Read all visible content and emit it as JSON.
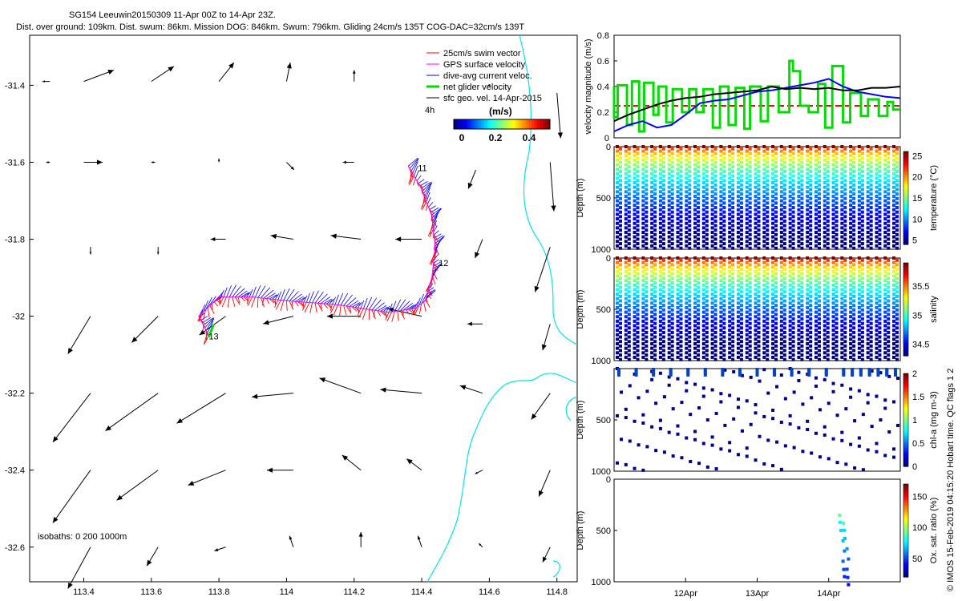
{
  "header": {
    "title_line1": "SG154 Leeuwin20150309 11-Apr 00Z to 14-Apr 23Z.",
    "title_line2": "Dist. over ground: 109km. Dist. swum: 86km. Mission DOG: 846km. Swum: 796km. Gliding 24cm/s 135T COG-DAC=32cm/s 139T"
  },
  "map": {
    "x_ticks": [
      "113.4",
      "113.6",
      "113.8",
      "114",
      "114.2",
      "114.4",
      "114.6",
      "114.8"
    ],
    "y_ticks": [
      "-31.4",
      "-31.6",
      "-31.8",
      "-32",
      "-32.2",
      "-32.4",
      "-32.6"
    ],
    "xlim": [
      113.24,
      114.86
    ],
    "ylim": [
      -32.69,
      -31.27
    ],
    "legend": [
      {
        "label": "25cm/s swim vector",
        "color": "#ff0000"
      },
      {
        "label": "GPS surface velocity",
        "color": "#ff00ff"
      },
      {
        "label": "dive-avg current veloc.",
        "color": "#0000ff"
      },
      {
        "label": "net glider velocity",
        "color": "#00dd00"
      },
      {
        "label": "sfc geo. vel. 14-Apr-2015",
        "color": "#000000"
      }
    ],
    "scale_label": "4h",
    "colorbar_title": "(m/s)",
    "colorbar_ticks": [
      "0",
      "0.2",
      "0.4"
    ],
    "isobaths_label": "isobaths: 0   200   1000m",
    "track_labels": [
      "11",
      "12",
      "13"
    ],
    "track": [
      [
        114.36,
        -31.61
      ],
      [
        114.4,
        -31.67
      ],
      [
        114.43,
        -31.74
      ],
      [
        114.44,
        -31.82
      ],
      [
        114.43,
        -31.9
      ],
      [
        114.41,
        -31.96
      ],
      [
        114.38,
        -31.98
      ],
      [
        114.3,
        -31.99
      ],
      [
        114.15,
        -31.97
      ],
      [
        114.0,
        -31.96
      ],
      [
        113.9,
        -31.95
      ],
      [
        113.8,
        -31.95
      ],
      [
        113.74,
        -32.0
      ],
      [
        113.77,
        -32.05
      ]
    ],
    "geo_vectors": [
      {
        "lon": 113.3,
        "lat": -31.39,
        "u": -0.02,
        "v": 0.0
      },
      {
        "lon": 113.4,
        "lat": -31.39,
        "u": 0.08,
        "v": 0.03
      },
      {
        "lon": 113.6,
        "lat": -31.39,
        "u": 0.06,
        "v": 0.04
      },
      {
        "lon": 113.8,
        "lat": -31.39,
        "u": 0.04,
        "v": 0.05
      },
      {
        "lon": 114.0,
        "lat": -31.39,
        "u": 0.01,
        "v": 0.05
      },
      {
        "lon": 114.2,
        "lat": -31.39,
        "u": 0.0,
        "v": 0.03
      },
      {
        "lon": 114.6,
        "lat": -31.4,
        "u": 0.0,
        "v": 0.0
      },
      {
        "lon": 114.8,
        "lat": -31.42,
        "u": 0.01,
        "v": -0.12
      },
      {
        "lon": 113.3,
        "lat": -31.6,
        "u": -0.01,
        "v": 0.0
      },
      {
        "lon": 113.4,
        "lat": -31.6,
        "u": 0.05,
        "v": 0.0
      },
      {
        "lon": 113.6,
        "lat": -31.6,
        "u": 0.01,
        "v": 0.0
      },
      {
        "lon": 113.8,
        "lat": -31.6,
        "u": 0.0,
        "v": 0.01
      },
      {
        "lon": 114.0,
        "lat": -31.6,
        "u": 0.02,
        "v": -0.02
      },
      {
        "lon": 114.2,
        "lat": -31.6,
        "u": -0.03,
        "v": 0.0
      },
      {
        "lon": 114.56,
        "lat": -31.62,
        "u": -0.02,
        "v": -0.05
      },
      {
        "lon": 114.78,
        "lat": -31.6,
        "u": 0.01,
        "v": -0.13
      },
      {
        "lon": 113.42,
        "lat": -31.82,
        "u": 0.0,
        "v": -0.02
      },
      {
        "lon": 113.62,
        "lat": -31.82,
        "u": 0.0,
        "v": -0.02
      },
      {
        "lon": 113.82,
        "lat": -31.8,
        "u": -0.04,
        "v": 0.0
      },
      {
        "lon": 114.02,
        "lat": -31.8,
        "u": -0.06,
        "v": 0.01
      },
      {
        "lon": 114.22,
        "lat": -31.8,
        "u": -0.08,
        "v": 0.01
      },
      {
        "lon": 114.4,
        "lat": -31.8,
        "u": -0.07,
        "v": 0.0
      },
      {
        "lon": 114.58,
        "lat": -31.8,
        "u": -0.02,
        "v": -0.05
      },
      {
        "lon": 114.78,
        "lat": -31.82,
        "u": -0.04,
        "v": -0.12
      },
      {
        "lon": 113.42,
        "lat": -32.0,
        "u": -0.06,
        "v": -0.1
      },
      {
        "lon": 113.62,
        "lat": -32.0,
        "u": -0.07,
        "v": -0.07
      },
      {
        "lon": 113.82,
        "lat": -32.0,
        "u": -0.07,
        "v": -0.05
      },
      {
        "lon": 114.02,
        "lat": -32.0,
        "u": -0.08,
        "v": -0.02
      },
      {
        "lon": 114.22,
        "lat": -32.0,
        "u": -0.09,
        "v": 0.0
      },
      {
        "lon": 114.4,
        "lat": -32.0,
        "u": -0.09,
        "v": 0.02
      },
      {
        "lon": 114.58,
        "lat": -32.02,
        "u": -0.04,
        "v": 0.0
      },
      {
        "lon": 114.78,
        "lat": -32.02,
        "u": -0.02,
        "v": -0.07
      },
      {
        "lon": 113.42,
        "lat": -32.2,
        "u": -0.1,
        "v": -0.13
      },
      {
        "lon": 113.62,
        "lat": -32.2,
        "u": -0.14,
        "v": -0.1
      },
      {
        "lon": 113.82,
        "lat": -32.2,
        "u": -0.13,
        "v": -0.08
      },
      {
        "lon": 114.02,
        "lat": -32.2,
        "u": -0.11,
        "v": -0.01
      },
      {
        "lon": 114.22,
        "lat": -32.2,
        "u": -0.11,
        "v": 0.04
      },
      {
        "lon": 114.4,
        "lat": -32.2,
        "u": -0.11,
        "v": 0.01
      },
      {
        "lon": 114.58,
        "lat": -32.2,
        "u": -0.06,
        "v": 0.02
      },
      {
        "lon": 114.78,
        "lat": -32.2,
        "u": -0.05,
        "v": -0.07
      },
      {
        "lon": 113.42,
        "lat": -32.4,
        "u": -0.1,
        "v": -0.14
      },
      {
        "lon": 113.62,
        "lat": -32.4,
        "u": -0.11,
        "v": -0.08
      },
      {
        "lon": 113.82,
        "lat": -32.4,
        "u": -0.1,
        "v": -0.04
      },
      {
        "lon": 114.02,
        "lat": -32.4,
        "u": -0.07,
        "v": 0.0
      },
      {
        "lon": 114.22,
        "lat": -32.4,
        "u": -0.05,
        "v": 0.04
      },
      {
        "lon": 114.4,
        "lat": -32.4,
        "u": -0.04,
        "v": 0.03
      },
      {
        "lon": 114.58,
        "lat": -32.4,
        "u": -0.02,
        "v": -0.01
      },
      {
        "lon": 114.78,
        "lat": -32.4,
        "u": -0.03,
        "v": -0.07
      },
      {
        "lon": 113.42,
        "lat": -32.6,
        "u": -0.06,
        "v": -0.11
      },
      {
        "lon": 113.62,
        "lat": -32.6,
        "u": -0.03,
        "v": -0.05
      },
      {
        "lon": 113.82,
        "lat": -32.6,
        "u": -0.03,
        "v": -0.01
      },
      {
        "lon": 114.02,
        "lat": -32.6,
        "u": -0.01,
        "v": 0.03
      },
      {
        "lon": 114.22,
        "lat": -32.6,
        "u": 0.0,
        "v": 0.04
      },
      {
        "lon": 114.4,
        "lat": -32.6,
        "u": -0.01,
        "v": 0.03
      },
      {
        "lon": 114.58,
        "lat": -32.6,
        "u": -0.01,
        "v": 0.01
      },
      {
        "lon": 114.78,
        "lat": -32.6,
        "u": -0.02,
        "v": -0.04
      }
    ]
  },
  "chart_data": [
    {
      "type": "line",
      "title": "",
      "xlabel": "",
      "ylabel": "velocity magnitude (m/s)",
      "x_range_days": [
        0,
        4
      ],
      "ylim": [
        0,
        0.8
      ],
      "y_ticks": [
        "0",
        "0.2",
        "0.4",
        "0.6",
        "0.8"
      ],
      "series": [
        {
          "name": "swim speed (reference)",
          "color": "#ff0000",
          "style": "dashed",
          "x": [
            0,
            4
          ],
          "y": [
            0.25,
            0.25
          ]
        },
        {
          "name": "net glider velocity",
          "color": "#00dd00",
          "x": [
            0.0,
            0.0,
            0.05,
            0.05,
            0.18,
            0.18,
            0.25,
            0.25,
            0.35,
            0.35,
            0.42,
            0.42,
            0.55,
            0.55,
            0.62,
            0.62,
            0.73,
            0.73,
            0.82,
            0.82,
            0.95,
            0.95,
            1.05,
            1.05,
            1.15,
            1.15,
            1.25,
            1.25,
            1.38,
            1.38,
            1.48,
            1.48,
            1.6,
            1.6,
            1.7,
            1.7,
            1.82,
            1.82,
            1.9,
            1.9,
            2.05,
            2.05,
            2.15,
            2.15,
            2.3,
            2.3,
            2.45,
            2.45,
            2.5,
            2.5,
            2.6,
            2.6,
            2.72,
            2.72,
            2.85,
            2.85,
            2.95,
            2.95,
            3.05,
            3.05,
            3.2,
            3.2,
            3.3,
            3.3,
            3.45,
            3.45,
            3.55,
            3.55,
            3.7,
            3.7,
            3.82,
            3.82,
            3.9,
            3.9,
            4.0
          ],
          "y": [
            0.4,
            0.16,
            0.16,
            0.41,
            0.41,
            0.1,
            0.1,
            0.44,
            0.44,
            0.05,
            0.05,
            0.43,
            0.43,
            0.18,
            0.18,
            0.4,
            0.4,
            0.12,
            0.12,
            0.38,
            0.38,
            0.2,
            0.2,
            0.38,
            0.38,
            0.2,
            0.2,
            0.38,
            0.38,
            0.08,
            0.08,
            0.4,
            0.4,
            0.1,
            0.1,
            0.39,
            0.39,
            0.07,
            0.07,
            0.4,
            0.4,
            0.13,
            0.13,
            0.4,
            0.4,
            0.2,
            0.2,
            0.6,
            0.6,
            0.52,
            0.52,
            0.25,
            0.25,
            0.2,
            0.2,
            0.42,
            0.42,
            0.08,
            0.08,
            0.56,
            0.56,
            0.12,
            0.12,
            0.35,
            0.35,
            0.17,
            0.17,
            0.3,
            0.3,
            0.17,
            0.17,
            0.28,
            0.28,
            0.22,
            0.22
          ]
        },
        {
          "name": "dive-avg current veloc.",
          "color": "#0000ff",
          "x": [
            0.0,
            0.2,
            0.4,
            0.6,
            0.8,
            1.0,
            1.2,
            1.4,
            1.6,
            1.8,
            2.0,
            2.2,
            2.4,
            2.6,
            2.8,
            3.0,
            3.2,
            3.4,
            3.6,
            3.8,
            4.0
          ],
          "y": [
            0.05,
            0.1,
            0.13,
            0.08,
            0.1,
            0.18,
            0.27,
            0.29,
            0.3,
            0.33,
            0.36,
            0.37,
            0.39,
            0.41,
            0.43,
            0.46,
            0.4,
            0.36,
            0.34,
            0.32,
            0.31
          ]
        },
        {
          "name": "sfc geo. vel.",
          "color": "#000000",
          "x": [
            0.0,
            0.2,
            0.4,
            0.6,
            0.8,
            1.0,
            1.2,
            1.4,
            1.6,
            1.8,
            2.0,
            2.2,
            2.4,
            2.6,
            2.8,
            3.0,
            3.2,
            3.4,
            3.6,
            3.8,
            4.0
          ],
          "y": [
            0.13,
            0.18,
            0.22,
            0.26,
            0.29,
            0.31,
            0.32,
            0.34,
            0.35,
            0.36,
            0.37,
            0.4,
            0.38,
            0.39,
            0.38,
            0.39,
            0.37,
            0.37,
            0.39,
            0.39,
            0.4
          ]
        }
      ]
    },
    {
      "type": "scatter",
      "ylabel": "Depth (m)",
      "colorbar_label": "temperature (°C)",
      "colorbar_ticks": [
        "5",
        "10",
        "15",
        "20",
        "25"
      ],
      "ylim": [
        1000,
        0
      ],
      "y_ticks": [
        "0",
        "500",
        "1000"
      ],
      "profiles": 33,
      "surface_value": 25,
      "deep_value": 4
    },
    {
      "type": "scatter",
      "ylabel": "Depth (m)",
      "colorbar_label": "salinity",
      "colorbar_ticks": [
        "34.5",
        "35",
        "35.5"
      ],
      "ylim": [
        1000,
        0
      ],
      "y_ticks": [
        "0",
        "500",
        "1000"
      ],
      "profiles": 33,
      "surface_value": 35.8,
      "deep_value": 34.35
    },
    {
      "type": "scatter",
      "ylabel": "Depth (m)",
      "colorbar_label": "chl-a (mg m-3)",
      "colorbar_ticks": [
        "0",
        "0.5",
        "1",
        "1.5",
        "2"
      ],
      "ylim": [
        1000,
        0
      ],
      "y_ticks": [
        "500",
        "1000"
      ],
      "profiles": 33
    },
    {
      "type": "scatter",
      "ylabel": "Depth (m)",
      "colorbar_label": "Ox. sat. ratio (%)",
      "colorbar_ticks": [
        "50",
        "100",
        "150"
      ],
      "ylim": [
        1000,
        0
      ],
      "y_ticks": [
        "0",
        "500",
        "1000"
      ],
      "x_ticks": [
        "12Apr",
        "13Apr",
        "14Apr"
      ],
      "points": [
        {
          "day": 3.15,
          "depth": 350,
          "value": 95
        },
        {
          "day": 3.16,
          "depth": 420,
          "value": 80
        },
        {
          "day": 3.17,
          "depth": 500,
          "value": 75
        },
        {
          "day": 3.2,
          "depth": 600,
          "value": 70
        },
        {
          "day": 3.22,
          "depth": 700,
          "value": 60
        },
        {
          "day": 3.2,
          "depth": 800,
          "value": 55
        },
        {
          "day": 3.21,
          "depth": 880,
          "value": 50
        },
        {
          "day": 3.22,
          "depth": 950,
          "value": 45
        }
      ]
    }
  ],
  "footer": {
    "vertical_text": "© IMOS 15-Feb-2019 04:15:20 Hobart time. QC flags 1  2"
  }
}
